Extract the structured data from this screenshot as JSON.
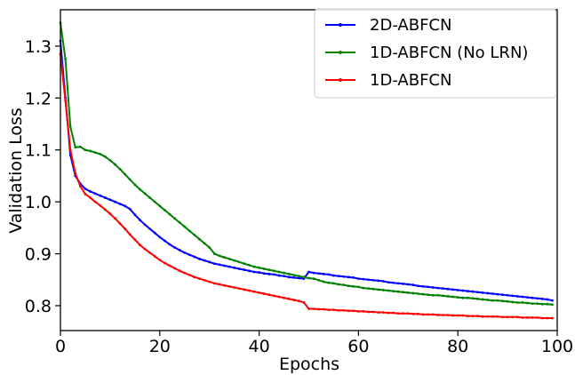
{
  "chart_data": {
    "type": "line",
    "title": "",
    "xlabel": "Epochs",
    "ylabel": "Validation Loss",
    "xlim": [
      0,
      100
    ],
    "ylim": [
      0.752,
      1.37
    ],
    "xticks": [
      0,
      20,
      40,
      60,
      80,
      100
    ],
    "xtick_labels": [
      "0",
      "20",
      "40",
      "60",
      "80",
      "100"
    ],
    "yticks": [
      0.8,
      0.9,
      1.0,
      1.1,
      1.2,
      1.3
    ],
    "ytick_labels": [
      "0.8",
      "0.9",
      "1.0",
      "1.1",
      "1.2",
      "1.3"
    ],
    "grid": false,
    "legend_position": "top-right",
    "series": [
      {
        "name": "2D-ABFCN",
        "color": "#0000ff",
        "values": [
          1.31,
          1.2,
          1.09,
          1.05,
          1.035,
          1.025,
          1.02,
          1.016,
          1.012,
          1.008,
          1.004,
          1.0,
          0.996,
          0.992,
          0.986,
          0.975,
          0.965,
          0.956,
          0.948,
          0.94,
          0.932,
          0.925,
          0.918,
          0.912,
          0.907,
          0.902,
          0.898,
          0.894,
          0.89,
          0.887,
          0.884,
          0.881,
          0.879,
          0.877,
          0.875,
          0.873,
          0.871,
          0.869,
          0.867,
          0.865,
          0.864,
          0.862,
          0.861,
          0.86,
          0.858,
          0.857,
          0.855,
          0.854,
          0.853,
          0.852,
          0.865,
          0.863,
          0.862,
          0.861,
          0.86,
          0.858,
          0.857,
          0.856,
          0.855,
          0.854,
          0.852,
          0.851,
          0.85,
          0.849,
          0.848,
          0.847,
          0.845,
          0.844,
          0.843,
          0.842,
          0.841,
          0.84,
          0.838,
          0.837,
          0.836,
          0.835,
          0.834,
          0.833,
          0.832,
          0.831,
          0.83,
          0.829,
          0.828,
          0.827,
          0.826,
          0.825,
          0.824,
          0.823,
          0.822,
          0.821,
          0.82,
          0.819,
          0.818,
          0.817,
          0.816,
          0.815,
          0.814,
          0.813,
          0.812,
          0.81
        ]
      },
      {
        "name": "1D-ABFCN (No LRN)",
        "color": "#008000",
        "values": [
          1.345,
          1.275,
          1.145,
          1.105,
          1.106,
          1.1,
          1.098,
          1.095,
          1.092,
          1.087,
          1.08,
          1.072,
          1.063,
          1.053,
          1.043,
          1.033,
          1.024,
          1.016,
          1.008,
          1.0,
          0.992,
          0.984,
          0.976,
          0.968,
          0.96,
          0.952,
          0.944,
          0.936,
          0.928,
          0.92,
          0.912,
          0.9,
          0.896,
          0.893,
          0.89,
          0.887,
          0.884,
          0.881,
          0.878,
          0.875,
          0.873,
          0.871,
          0.869,
          0.867,
          0.865,
          0.863,
          0.861,
          0.859,
          0.857,
          0.855,
          0.853,
          0.852,
          0.849,
          0.846,
          0.844,
          0.843,
          0.841,
          0.84,
          0.838,
          0.837,
          0.836,
          0.834,
          0.833,
          0.832,
          0.831,
          0.83,
          0.829,
          0.828,
          0.827,
          0.826,
          0.825,
          0.824,
          0.823,
          0.822,
          0.821,
          0.82,
          0.82,
          0.819,
          0.818,
          0.817,
          0.816,
          0.815,
          0.815,
          0.814,
          0.813,
          0.812,
          0.811,
          0.81,
          0.81,
          0.809,
          0.808,
          0.807,
          0.806,
          0.806,
          0.805,
          0.804,
          0.804,
          0.803,
          0.803,
          0.802
        ]
      },
      {
        "name": "1D-ABFCN",
        "color": "#ff0000",
        "values": [
          1.285,
          1.195,
          1.1,
          1.055,
          1.03,
          1.015,
          1.008,
          1.0,
          0.993,
          0.985,
          0.977,
          0.968,
          0.958,
          0.948,
          0.937,
          0.927,
          0.917,
          0.909,
          0.902,
          0.895,
          0.888,
          0.882,
          0.877,
          0.872,
          0.867,
          0.863,
          0.859,
          0.855,
          0.852,
          0.849,
          0.846,
          0.843,
          0.841,
          0.839,
          0.837,
          0.835,
          0.833,
          0.831,
          0.829,
          0.827,
          0.825,
          0.823,
          0.821,
          0.819,
          0.817,
          0.815,
          0.813,
          0.811,
          0.809,
          0.806,
          0.794,
          0.794,
          0.793,
          0.793,
          0.792,
          0.792,
          0.791,
          0.791,
          0.79,
          0.79,
          0.789,
          0.789,
          0.788,
          0.788,
          0.787,
          0.787,
          0.786,
          0.786,
          0.785,
          0.785,
          0.785,
          0.784,
          0.784,
          0.783,
          0.783,
          0.783,
          0.782,
          0.782,
          0.782,
          0.781,
          0.781,
          0.781,
          0.78,
          0.78,
          0.78,
          0.779,
          0.779,
          0.779,
          0.779,
          0.778,
          0.778,
          0.778,
          0.778,
          0.777,
          0.777,
          0.777,
          0.777,
          0.776,
          0.776,
          0.776
        ]
      }
    ]
  }
}
